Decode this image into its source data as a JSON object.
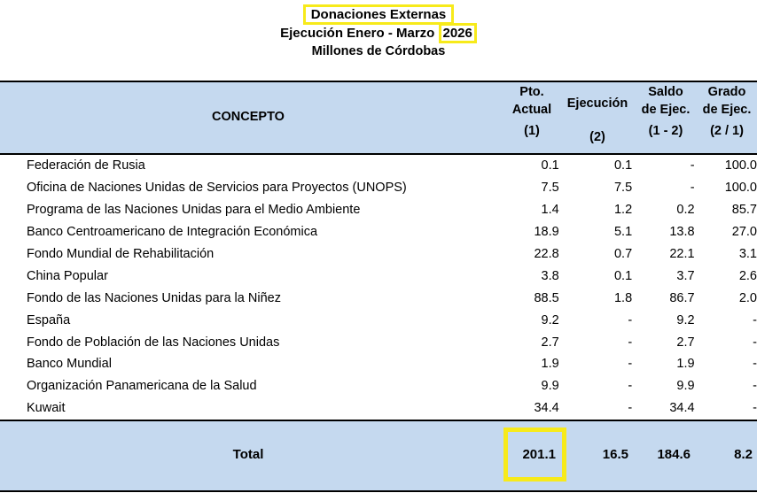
{
  "header": {
    "title": "Donaciones  Externas",
    "subtitle_prefix": "Ejecución  Enero - Marzo",
    "subtitle_year": "2026",
    "units": "Millones de Córdobas"
  },
  "columns": {
    "concepto": "CONCEPTO",
    "pto": [
      "Pto.",
      "Actual",
      "(1)"
    ],
    "ejecucion": [
      "Ejecución",
      "(2)"
    ],
    "saldo": [
      "Saldo",
      "de Ejec.",
      "(1 - 2)"
    ],
    "grado": [
      "Grado",
      "de Ejec.",
      "(2 / 1)"
    ]
  },
  "rows": [
    {
      "concepto": "Federación de Rusia",
      "pto": "0.1",
      "ejec": "0.1",
      "saldo": "-",
      "grado": "100.0"
    },
    {
      "concepto": "Oficina de Naciones Unidas de Servicios para Proyectos (UNOPS)",
      "pto": "7.5",
      "ejec": "7.5",
      "saldo": "-",
      "grado": "100.0"
    },
    {
      "concepto": "Programa de las Naciones Unidas para el Medio Ambiente",
      "pto": "1.4",
      "ejec": "1.2",
      "saldo": "0.2",
      "grado": "85.7"
    },
    {
      "concepto": "Banco Centroamericano de Integración Económica",
      "pto": "18.9",
      "ejec": "5.1",
      "saldo": "13.8",
      "grado": "27.0"
    },
    {
      "concepto": "Fondo Mundial de Rehabilitación",
      "pto": "22.8",
      "ejec": "0.7",
      "saldo": "22.1",
      "grado": "3.1"
    },
    {
      "concepto": "China Popular",
      "pto": "3.8",
      "ejec": "0.1",
      "saldo": "3.7",
      "grado": "2.6"
    },
    {
      "concepto": "Fondo de las Naciones Unidas para la Niñez",
      "pto": "88.5",
      "ejec": "1.8",
      "saldo": "86.7",
      "grado": "2.0"
    },
    {
      "concepto": "España",
      "pto": "9.2",
      "ejec": "-",
      "saldo": "9.2",
      "grado": "-"
    },
    {
      "concepto": "Fondo de Población de las Naciones Unidas",
      "pto": "2.7",
      "ejec": "-",
      "saldo": "2.7",
      "grado": "-"
    },
    {
      "concepto": "Banco Mundial",
      "pto": "1.9",
      "ejec": "-",
      "saldo": "1.9",
      "grado": "-"
    },
    {
      "concepto": "Organización Panamericana de la Salud",
      "pto": "9.9",
      "ejec": "-",
      "saldo": "9.9",
      "grado": "-"
    },
    {
      "concepto": "Kuwait",
      "pto": "34.4",
      "ejec": "-",
      "saldo": "34.4",
      "grado": "-"
    }
  ],
  "total": {
    "label": "Total",
    "pto": "201.1",
    "ejec": "16.5",
    "saldo": "184.6",
    "grado": "8.2"
  },
  "colors": {
    "band": "#c5d9ef",
    "highlight": "#f7ea1a"
  }
}
